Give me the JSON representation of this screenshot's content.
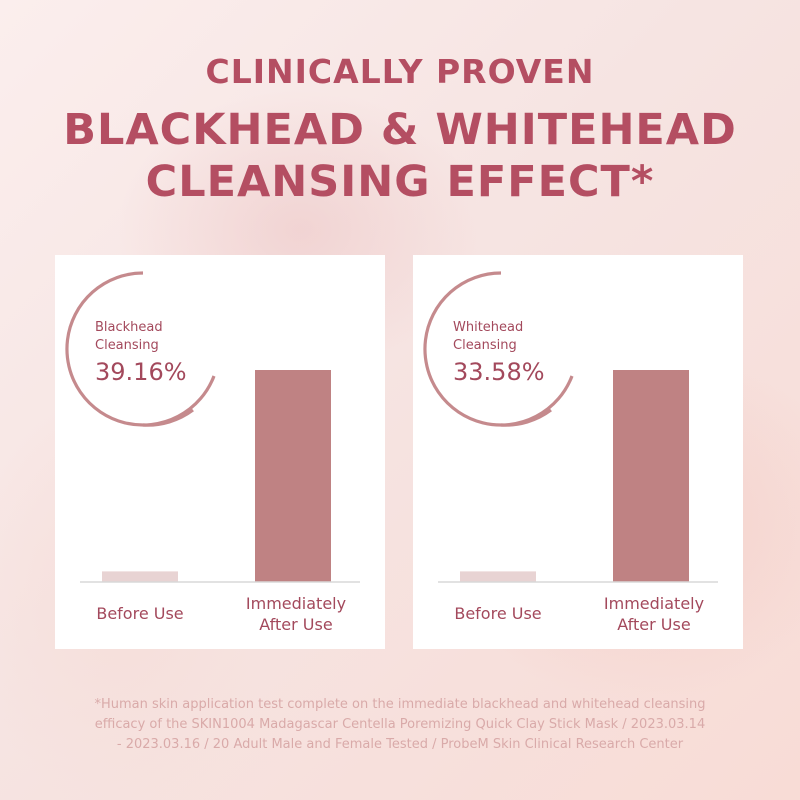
{
  "header": {
    "line1": "CLINICALLY PROVEN",
    "line2a": "BLACKHEAD & WHITEHEAD",
    "line2b": "CLEANSING EFFECT*"
  },
  "colors": {
    "title": "#b44e62",
    "bar_before": "#e8d3d3",
    "bar_after": "#bf8283",
    "ring": "#c58a8d",
    "axis": "#d8d8d8",
    "text": "#a3495c"
  },
  "chart_data": [
    {
      "type": "bar",
      "highlight_label": [
        "Blackhead",
        "Cleansing"
      ],
      "highlight_value": "39.16%",
      "categories": [
        "Before Use",
        "Immediately After Use"
      ],
      "category_lines": [
        [
          "Before Use"
        ],
        [
          "Immediately",
          "After Use"
        ]
      ],
      "values": [
        5,
        100
      ],
      "grid": false,
      "y_axis_visible": false
    },
    {
      "type": "bar",
      "highlight_label": [
        "Whitehead",
        "Cleansing"
      ],
      "highlight_value": "33.58%",
      "categories": [
        "Before Use",
        "Immediately After Use"
      ],
      "category_lines": [
        [
          "Before Use"
        ],
        [
          "Immediately",
          "After Use"
        ]
      ],
      "values": [
        5,
        100
      ],
      "grid": false,
      "y_axis_visible": false
    }
  ],
  "footnote": {
    "line1": "*Human skin application test complete on the immediate blackhead and whitehead cleansing",
    "line2": "efficacy of the SKIN1004 Madagascar Centella Poremizing Quick Clay Stick Mask / 2023.03.14",
    "line3": "- 2023.03.16 / 20 Adult Male and Female Tested / ProbeM Skin Clinical Research Center"
  }
}
